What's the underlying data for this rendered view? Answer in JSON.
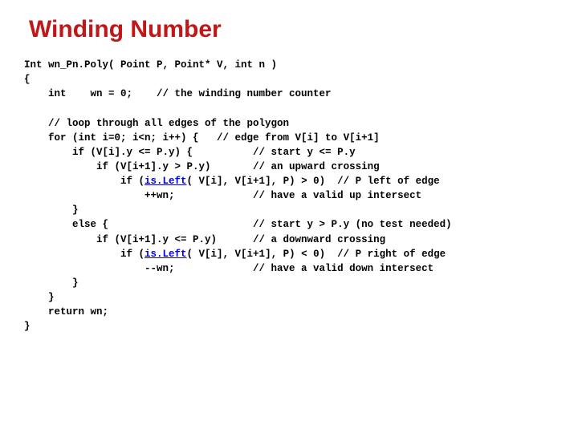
{
  "slide": {
    "title": "Winding Number",
    "title_color": "#c01818",
    "background_color": "#ffffff",
    "text_color": "#000000",
    "link_color": "#0000ee",
    "code_font_family": "Courier New",
    "title_font_family": "Verdana",
    "title_fontsize": 30,
    "code_fontsize": 12.5,
    "code_lines": [
      "Int wn_Pn.Poly( Point P, Point* V, int n )",
      "{",
      "    int    wn = 0;    // the winding number counter",
      "",
      "    // loop through all edges of the polygon",
      "    for (int i=0; i<n; i++) {   // edge from V[i] to V[i+1]",
      "        if (V[i].y <= P.y) {          // start y <= P.y",
      "            if (V[i+1].y > P.y)       // an upward crossing",
      "                if (is.Left( V[i], V[i+1], P) > 0)  // P left of edge",
      "                    ++wn;             // have a valid up intersect",
      "        }",
      "        else {                        // start y > P.y (no test needed)",
      "            if (V[i+1].y <= P.y)      // a downward crossing",
      "                if (is.Left( V[i], V[i+1], P) < 0)  // P right of edge",
      "                    --wn;             // have a valid down intersect",
      "        }",
      "    }",
      "    return wn;",
      "}"
    ],
    "link_text": "is.Left",
    "link_line_indices": [
      8,
      13
    ]
  }
}
